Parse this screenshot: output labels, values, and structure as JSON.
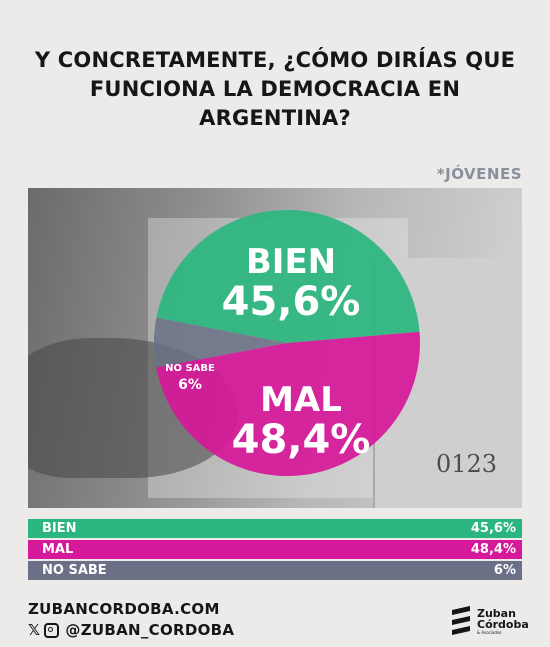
{
  "title": "Y CONCRETAMENTE, ¿CÓMO DIRÍAS QUE FUNCIONA LA DEMOCRACIA EN ARGENTINA?",
  "segment": "*JÓVENES",
  "photo_text": "0123",
  "chart_data": {
    "type": "pie",
    "title": "Y CONCRETAMENTE, ¿CÓMO DIRÍAS QUE FUNCIONA LA DEMOCRACIA EN ARGENTINA?",
    "subtitle": "*JÓVENES",
    "unit": "%",
    "slices": [
      {
        "label": "BIEN",
        "value": 45.6,
        "display": "45,6%",
        "color": "#2bb67f"
      },
      {
        "label": "MAL",
        "value": 48.4,
        "display": "48,4%",
        "color": "#d6199a"
      },
      {
        "label": "NO SABE",
        "value": 6,
        "display": "6%",
        "color": "#6b7086"
      }
    ],
    "bars": [
      {
        "label": "BIEN",
        "value": 45.6,
        "display": "45,6%",
        "color": "#2bb67f"
      },
      {
        "label": "MAL",
        "value": 48.4,
        "display": "48,4%",
        "color": "#d6199a"
      },
      {
        "label": "NO SABE",
        "value": 6,
        "display": "6%",
        "color": "#6b7086"
      }
    ]
  },
  "footer": {
    "website": "ZUBANCORDOBA.COM",
    "social": "@ZUBAN_CORDOBA",
    "brand_line1": "Zuban",
    "brand_line2": "Córdoba",
    "brand_line3": "& Asociados"
  }
}
